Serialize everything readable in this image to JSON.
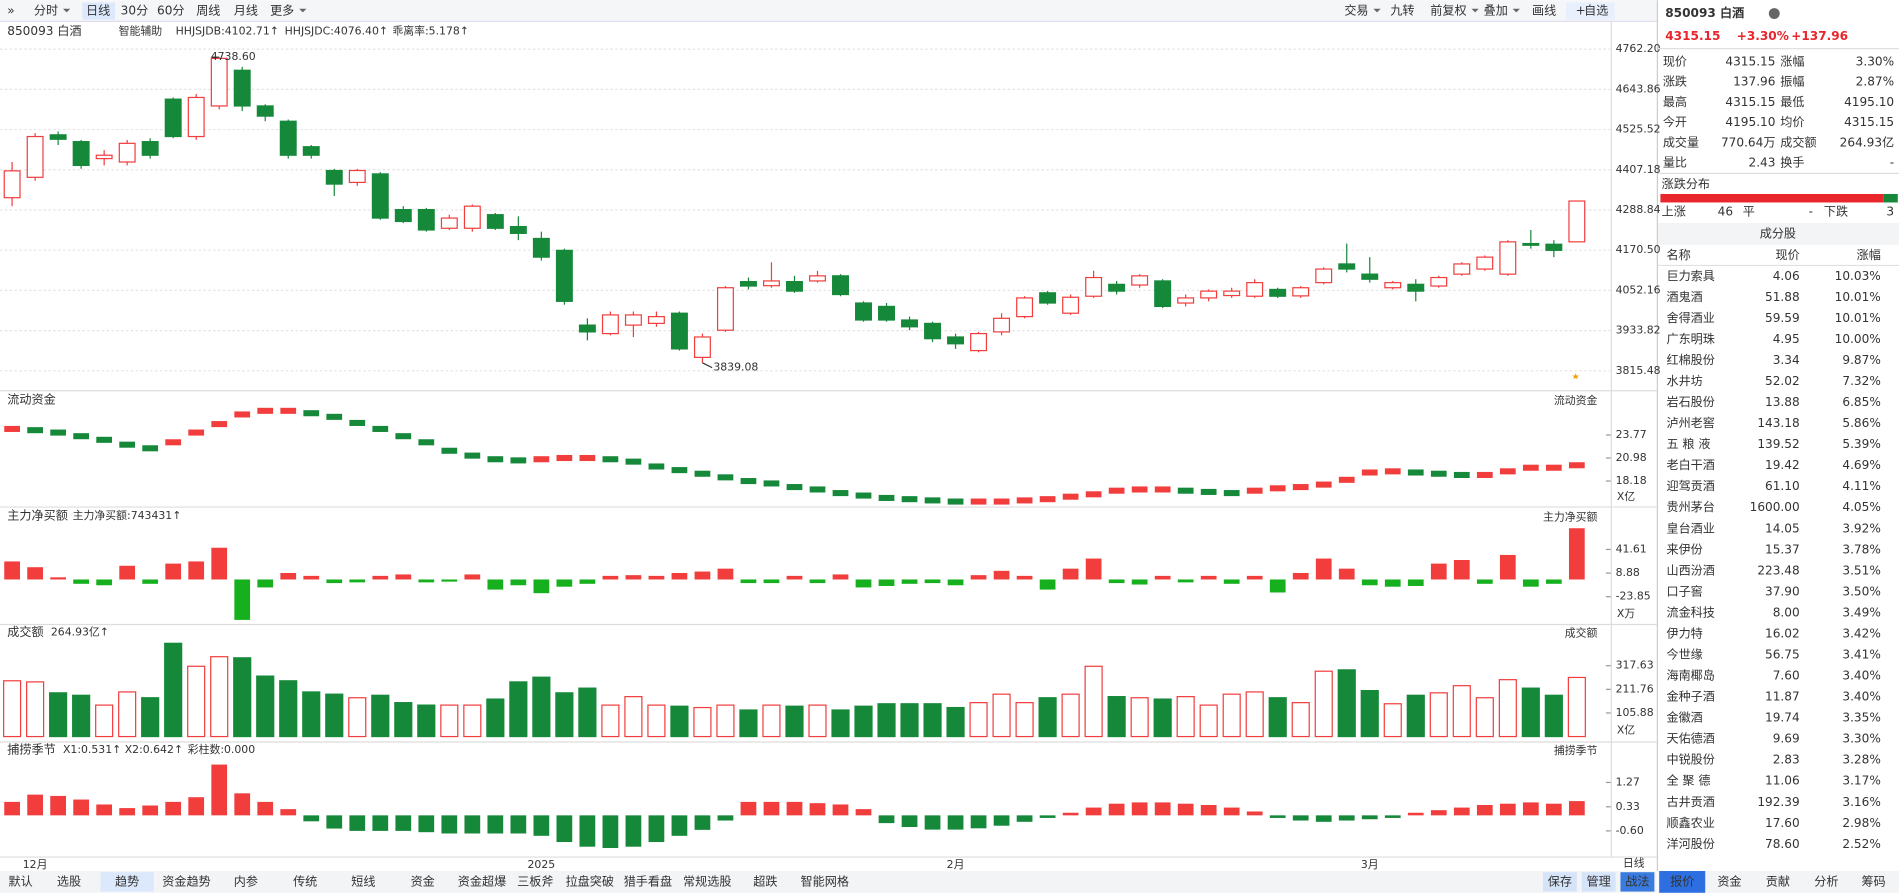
{
  "toolbar": {
    "left": [
      "分时",
      "日线",
      "30分",
      "60分",
      "周线",
      "月线",
      "更多"
    ],
    "right": [
      "交易",
      "九转",
      "前复权",
      "叠加",
      "画线",
      "自选"
    ]
  },
  "chart_data": [
    {
      "type": "candlestick",
      "title": "850093 白酒",
      "legend": [
        {
          "text": "智能辅助",
          "color": "#555555"
        },
        {
          "text": "HHJSJDB:4102.71↑",
          "color": "#e8862b"
        },
        {
          "text": "HHJSJDC:4076.40↑",
          "color": "#e8262b"
        },
        {
          "text": "乖离率:5.178↑",
          "color": "#e8862b"
        }
      ],
      "up_color": "#f23d3d",
      "down_color": "#16883a",
      "grid": true,
      "categories": [
        null,
        "12月",
        null,
        null,
        null,
        null,
        null,
        null,
        null,
        null,
        null,
        null,
        null,
        null,
        null,
        null,
        null,
        null,
        null,
        null,
        null,
        null,
        null,
        "2025",
        null,
        null,
        null,
        null,
        null,
        null,
        null,
        null,
        null,
        null,
        null,
        null,
        null,
        null,
        null,
        null,
        null,
        "2月",
        null,
        null,
        null,
        null,
        null,
        null,
        null,
        null,
        null,
        null,
        null,
        null,
        null,
        null,
        null,
        null,
        null,
        "3月",
        null,
        null,
        null,
        null,
        null,
        null,
        null,
        null,
        null
      ],
      "open": [
        4325,
        4385,
        4510,
        4490,
        4440,
        4430,
        4490,
        4615,
        4505,
        4595,
        4700,
        4595,
        4550,
        4475,
        4405,
        4370,
        4395,
        4290,
        4290,
        4235,
        4235,
        4275,
        4240,
        4205,
        4170,
        3950,
        3925,
        3950,
        3955,
        3985,
        3855,
        3935,
        4078,
        4066,
        4078,
        4080,
        4095,
        4015,
        4005,
        3965,
        3955,
        3915,
        3875,
        3930,
        3975,
        4045,
        3985,
        4035,
        4070,
        4068,
        4080,
        4015,
        4030,
        4037,
        4035,
        4055,
        4036,
        4075,
        4130,
        4100,
        4060,
        4070,
        4065,
        4100,
        4115,
        4100,
        4190,
        4188,
        4195.1
      ],
      "high": [
        4430,
        4515,
        4520,
        4495,
        4465,
        4495,
        4500,
        4620,
        4630,
        4738.6,
        4710,
        4600,
        4555,
        4480,
        4410,
        4410,
        4400,
        4300,
        4295,
        4275,
        4305,
        4280,
        4270,
        4225,
        4175,
        3970,
        3990,
        3990,
        3990,
        3990,
        3925,
        4065,
        4090,
        4135,
        4095,
        4110,
        4100,
        4020,
        4015,
        3975,
        3960,
        3925,
        3930,
        3985,
        4035,
        4050,
        4040,
        4110,
        4080,
        4100,
        4085,
        4040,
        4055,
        4060,
        4085,
        4060,
        4065,
        4120,
        4190,
        4150,
        4080,
        4085,
        4095,
        4135,
        4155,
        4200,
        4230,
        4200,
        4315.15
      ],
      "low": [
        4300,
        4375,
        4480,
        4410,
        4420,
        4420,
        4440,
        4500,
        4495,
        4585,
        4580,
        4550,
        4440,
        4440,
        4330,
        4360,
        4260,
        4250,
        4225,
        4230,
        4225,
        4230,
        4200,
        4140,
        4010,
        3905,
        3920,
        3915,
        3945,
        3875,
        3839.08,
        3930,
        4055,
        4060,
        4045,
        4075,
        4035,
        3960,
        3960,
        3935,
        3900,
        3880,
        3870,
        3920,
        3970,
        4010,
        3980,
        4030,
        4040,
        4060,
        4000,
        4005,
        4020,
        4030,
        4030,
        4030,
        4030,
        4070,
        4105,
        4075,
        4055,
        4020,
        4060,
        4095,
        4110,
        4095,
        4175,
        4150,
        4195.1
      ],
      "close": [
        4404,
        4505,
        4497,
        4420,
        4450,
        4485,
        4450,
        4505,
        4620,
        4735,
        4595,
        4565,
        4450,
        4450,
        4365,
        4405,
        4265,
        4255,
        4230,
        4265,
        4300,
        4235,
        4220,
        4150,
        4020,
        3930,
        3980,
        3980,
        3975,
        3880,
        3915,
        4060,
        4065,
        4080,
        4050,
        4095,
        4040,
        3965,
        3965,
        3945,
        3910,
        3895,
        3925,
        3970,
        4030,
        4015,
        4032,
        4090,
        4050,
        4095,
        4005,
        4030,
        4050,
        4050,
        4075,
        4035,
        4060,
        4115,
        4115,
        4085,
        4075,
        4050,
        4090,
        4130,
        4150,
        4195,
        4185,
        4170,
        4315.15
      ],
      "annotations": [
        {
          "value": 4738.6,
          "label": "4738.60"
        },
        {
          "value": 3839.08,
          "label": "3839.08"
        }
      ],
      "ylim": [
        3765.58,
        4842.06
      ],
      "yticks": [
        {
          "value": 4762.2,
          "label": "4762.20"
        },
        4643.86,
        4525.52,
        4407.18,
        4288.84,
        {
          "value": 4170.5,
          "label": "4170.50"
        },
        4052.16,
        3933.82,
        3815.48
      ]
    },
    {
      "type": "marker",
      "title": "流动资金",
      "unit": "X亿",
      "up_color": "#f23d3d",
      "down_color": "#16883a",
      "values": [
        24.51,
        24.36,
        24.07,
        23.63,
        23.19,
        22.6,
        22.16,
        22.89,
        24.07,
        25.1,
        26.27,
        26.71,
        26.71,
        26.42,
        25.98,
        25.24,
        24.51,
        23.63,
        22.89,
        21.86,
        21.27,
        20.83,
        20.69,
        20.83,
        20.98,
        20.98,
        20.83,
        20.54,
        19.95,
        19.51,
        19.07,
        18.63,
        18.18,
        17.89,
        17.45,
        17.16,
        16.72,
        16.42,
        16.13,
        15.98,
        15.83,
        15.69,
        15.69,
        15.69,
        15.83,
        15.98,
        16.28,
        16.57,
        17.01,
        17.16,
        17.16,
        17.01,
        16.86,
        16.72,
        17.01,
        17.3,
        17.45,
        17.75,
        18.33,
        19.22,
        19.36,
        19.22,
        19.07,
        18.92,
        18.92,
        19.36,
        19.8,
        19.8,
        20.1
      ],
      "ylim": [
        15.39,
        27.6
      ],
      "yticks": [
        23.77,
        20.98,
        18.18
      ]
    },
    {
      "type": "bar",
      "title": "主力净买额",
      "legend": [
        {
          "text": "主力净买额:743431↑",
          "color": "#e8262b"
        }
      ],
      "unit": "X万",
      "up_color": "#f23d3d",
      "down_color": "#16b01e",
      "values": [
        25,
        17,
        3,
        -6,
        -8,
        19,
        -6,
        22,
        25,
        44,
        -56,
        -11,
        9,
        5,
        -5,
        -4,
        5,
        7,
        -4,
        -3,
        7,
        -14,
        -8,
        -19,
        -10,
        -6,
        5,
        6,
        5,
        9,
        11,
        15,
        -5,
        -5,
        5,
        -5,
        7,
        -11,
        -9,
        -6,
        -5,
        -8,
        6,
        12,
        5,
        -14,
        15,
        29,
        -5,
        -7,
        5,
        -4,
        5,
        -6,
        5,
        -18,
        9,
        29,
        15,
        -8,
        -10,
        -9,
        22,
        27,
        -6,
        34,
        -10,
        -6,
        71
      ],
      "ylim": [
        -59.9,
        77.7
      ],
      "yticks": [
        41.61,
        8.88,
        -23.85
      ]
    },
    {
      "type": "volume",
      "title": "成交额",
      "legend": [
        {
          "text": "264.93亿↑",
          "color": "#333333"
        }
      ],
      "unit": "X亿",
      "up_color": "#f23d3d",
      "down_color": "#16883a",
      "values": [
        250,
        245,
        196,
        185,
        141,
        200,
        174,
        418,
        315,
        358,
        353,
        271,
        250,
        200,
        190,
        174,
        185,
        152,
        141,
        141,
        141,
        168,
        245,
        266,
        196,
        217,
        141,
        179,
        141,
        136,
        130,
        141,
        119,
        141,
        136,
        141,
        119,
        136,
        147,
        147,
        147,
        130,
        152,
        190,
        152,
        174,
        190,
        315,
        179,
        174,
        168,
        179,
        141,
        190,
        200,
        174,
        152,
        293,
        299,
        206,
        147,
        185,
        196,
        228,
        174,
        255,
        217,
        185,
        264.93
      ],
      "ylim": [
        0,
        428.9
      ],
      "yticks": [
        317.63,
        211.76,
        105.88
      ]
    },
    {
      "type": "bar",
      "title": "捕捞季节",
      "legend": [
        {
          "text": "X1:0.531↑",
          "color": "#d4a000"
        },
        {
          "text": "X2:0.642↑",
          "color": "#e020c0"
        },
        {
          "text": "彩柱数:0.000",
          "color": "#16883a"
        }
      ],
      "up_color": "#f23d3d",
      "down_color": "#16883a",
      "values": [
        0.52,
        0.8,
        0.75,
        0.61,
        0.42,
        0.28,
        0.38,
        0.52,
        0.7,
        1.96,
        0.85,
        0.52,
        0.24,
        -0.23,
        -0.51,
        -0.6,
        -0.6,
        -0.6,
        -0.65,
        -0.7,
        -0.7,
        -0.7,
        -0.7,
        -0.79,
        -1.03,
        -1.21,
        -1.26,
        -1.21,
        -1.03,
        -0.79,
        -0.56,
        -0.2,
        0.52,
        0.52,
        0.52,
        0.47,
        0.42,
        0.24,
        -0.3,
        -0.45,
        -0.55,
        -0.55,
        -0.5,
        -0.4,
        -0.25,
        -0.1,
        0.1,
        0.3,
        0.45,
        0.5,
        0.5,
        0.45,
        0.4,
        0.3,
        0.15,
        -0.1,
        -0.2,
        -0.25,
        -0.2,
        -0.15,
        -0.1,
        0.1,
        0.2,
        0.3,
        0.4,
        0.45,
        0.5,
        0.45,
        0.55
      ],
      "ylim": [
        -1.54,
        2.2
      ],
      "yticks": [
        1.27,
        0.33,
        {
          "value": -0.6,
          "label": "-0.60"
        }
      ]
    }
  ],
  "quote": {
    "name": "850093 白酒",
    "price": "4315.15",
    "change_pct": "+3.30%",
    "change": "+137.96",
    "stats": [
      [
        "现价",
        "4315.15",
        "涨幅",
        "3.30%"
      ],
      [
        "涨跌",
        "137.96",
        "振幅",
        "2.87%"
      ],
      [
        "最高",
        "4315.15",
        "最低",
        "4195.10"
      ],
      [
        "今开",
        "4195.10",
        "均价",
        "4315.15"
      ],
      [
        "成交量",
        "770.64万",
        "成交额",
        "264.93亿"
      ],
      [
        "量比",
        "2.43",
        "换手",
        "-"
      ]
    ]
  },
  "distribution": {
    "title": "涨跌分布",
    "up_label": "上涨",
    "up": 46,
    "flat_label": "平",
    "flat": "-",
    "down_label": "下跌",
    "down": 3
  },
  "constituents": {
    "title": "成分股",
    "columns": [
      "名称",
      "现价",
      "涨幅"
    ],
    "rows": [
      {
        "name": "巨力索具",
        "price": "4.06",
        "change": "10.03%",
        "color": "#222222"
      },
      {
        "name": "酒鬼酒",
        "price": "51.88",
        "change": "10.01%",
        "color": "#222222"
      },
      {
        "name": "舍得酒业",
        "price": "59.59",
        "change": "10.01%",
        "color": "#222222"
      },
      {
        "name": "广东明珠",
        "price": "4.95",
        "change": "10.00%",
        "color": "#222222"
      },
      {
        "name": "红棉股份",
        "price": "3.34",
        "change": "9.87%",
        "color": "#222222"
      },
      {
        "name": "水井坊",
        "price": "52.02",
        "change": "7.32%",
        "color": "#222222"
      },
      {
        "name": "岩石股份",
        "price": "13.88",
        "change": "6.85%",
        "color": "#e0208a"
      },
      {
        "name": "泸州老窖",
        "price": "143.18",
        "change": "5.86%",
        "color": "#222222"
      },
      {
        "name": "五 粮 液",
        "price": "139.52",
        "change": "5.39%",
        "color": "#222222"
      },
      {
        "name": "老白干酒",
        "price": "19.42",
        "change": "4.69%",
        "color": "#222222"
      },
      {
        "name": "迎驾贡酒",
        "price": "61.10",
        "change": "4.11%",
        "color": "#222222"
      },
      {
        "name": "贵州茅台",
        "price": "1600.00",
        "change": "4.05%",
        "color": "#222222"
      },
      {
        "name": "皇台酒业",
        "price": "14.05",
        "change": "3.92%",
        "color": "#e0208a"
      },
      {
        "name": "来伊份",
        "price": "15.37",
        "change": "3.78%",
        "color": "#2266dd"
      },
      {
        "name": "山西汾酒",
        "price": "223.48",
        "change": "3.51%",
        "color": "#222222"
      },
      {
        "name": "口子窖",
        "price": "37.90",
        "change": "3.50%",
        "color": "#222222"
      },
      {
        "name": "流金科技",
        "price": "8.00",
        "change": "3.49%",
        "color": "#222222"
      },
      {
        "name": "伊力特",
        "price": "16.02",
        "change": "3.42%",
        "color": "#222222"
      },
      {
        "name": "今世缘",
        "price": "56.75",
        "change": "3.41%",
        "color": "#222222"
      },
      {
        "name": "海南椰岛",
        "price": "7.60",
        "change": "3.40%",
        "color": "#e0208a"
      },
      {
        "name": "金种子酒",
        "price": "11.87",
        "change": "3.40%",
        "color": "#222222"
      },
      {
        "name": "金徽酒",
        "price": "19.74",
        "change": "3.35%",
        "color": "#222222"
      },
      {
        "name": "天佑德酒",
        "price": "9.69",
        "change": "3.30%",
        "color": "#222222"
      },
      {
        "name": "中锐股份",
        "price": "2.83",
        "change": "3.28%",
        "color": "#2266dd"
      },
      {
        "name": "全 聚 德",
        "price": "11.06",
        "change": "3.17%",
        "color": "#222222"
      },
      {
        "name": "古井贡酒",
        "price": "192.39",
        "change": "3.16%",
        "color": "#222222"
      },
      {
        "name": "顺鑫农业",
        "price": "17.60",
        "change": "2.98%",
        "color": "#222222"
      },
      {
        "name": "洋河股份",
        "price": "78.60",
        "change": "2.52%",
        "color": "#222222"
      }
    ]
  },
  "bottom_tabs": {
    "tabs": [
      "默认",
      "选股",
      "趋势",
      "资金趋势",
      "内参",
      "传统",
      "短线",
      "资金",
      "资金超爆",
      "三板斧",
      "拉盘突破",
      "猎手看盘",
      "常规选股",
      "超跌",
      "智能网格"
    ],
    "actions": [
      "保存",
      "管理",
      "战法"
    ],
    "period": "日线"
  },
  "side_tabs": [
    "报价",
    "资金",
    "贡献",
    "分析",
    "筹码"
  ]
}
